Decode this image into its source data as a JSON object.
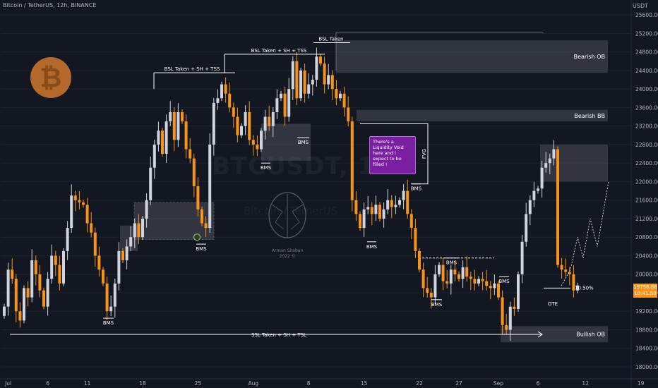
{
  "header": {
    "title": "Bitcoin / TetherUS, 12h, BINANCE",
    "unit": "USDT"
  },
  "colors": {
    "bull": "#d1d4dc",
    "bear": "#f7931a",
    "background": "#131722",
    "zone": "#5d606b",
    "callout": "#7b1fa2"
  },
  "watermark": {
    "symbol": "BTCUSDT, 12h",
    "name": "Bitcoin / TetherUS"
  },
  "author": {
    "name": "Arman Shaban",
    "year": "2022 ©"
  },
  "callout_text": "There's a Liquidity Void here and i expect to be filled !",
  "last_price": {
    "value": "19756.88",
    "countdown": "10:41:50"
  },
  "chart_data": {
    "type": "candlestick",
    "ylim": [
      18000,
      25800
    ],
    "y_ticks": [
      18000,
      18400,
      18800,
      19200,
      19600,
      20000,
      20400,
      20800,
      21200,
      21600,
      22000,
      22400,
      22800,
      23200,
      23600,
      24000,
      24400,
      24800,
      25200,
      25600
    ],
    "x_ticks": [
      {
        "label": "Jul",
        "bar": 1
      },
      {
        "label": "6",
        "bar": 11
      },
      {
        "label": "11",
        "bar": 21
      },
      {
        "label": "18",
        "bar": 35
      },
      {
        "label": "25",
        "bar": 49
      },
      {
        "label": "Aug",
        "bar": 63
      },
      {
        "label": "8",
        "bar": 77
      },
      {
        "label": "15",
        "bar": 91
      },
      {
        "label": "22",
        "bar": 105
      },
      {
        "label": "27",
        "bar": 115
      },
      {
        "label": "Sep",
        "bar": 125
      },
      {
        "label": "6",
        "bar": 135
      },
      {
        "label": "12",
        "bar": 147
      },
      {
        "label": "19",
        "bar": 161
      }
    ],
    "closes": [
      19300,
      20100,
      19900,
      19200,
      19000,
      19700,
      19500,
      20300,
      20000,
      19650,
      19300,
      19900,
      20400,
      20200,
      19800,
      20500,
      21000,
      21700,
      21600,
      21550,
      21500,
      21100,
      20900,
      20400,
      20100,
      19800,
      19200,
      19300,
      19800,
      20500,
      20300,
      20600,
      20800,
      21100,
      20800,
      21200,
      21600,
      22300,
      22800,
      23100,
      22600,
      23300,
      23500,
      22900,
      23500,
      23300,
      22700,
      22500,
      21900,
      21400,
      21100,
      21000,
      22800,
      23700,
      23800,
      24100,
      23900,
      23600,
      23400,
      23000,
      23200,
      23500,
      22900,
      22800,
      22700,
      23100,
      23400,
      23200,
      23500,
      23800,
      23900,
      23400,
      24000,
      24600,
      23800,
      24400,
      23900,
      24100,
      24200,
      24700,
      24550,
      24100,
      24300,
      24000,
      23800,
      23900,
      23600,
      23300,
      21600,
      21300,
      21000,
      21400,
      21450,
      21300,
      21500,
      21200,
      21400,
      21600,
      21450,
      21500,
      21600,
      21800,
      21300,
      21000,
      20500,
      20100,
      19700,
      19600,
      19500,
      20000,
      20200,
      19850,
      19800,
      20100,
      20000,
      19900,
      20150,
      19950,
      19900,
      19800,
      19900,
      19850,
      19750,
      19700,
      19800,
      19500,
      18900,
      18800,
      19300,
      19250,
      20000,
      20700,
      21300,
      21600,
      21800,
      21850,
      22300,
      22400,
      22500,
      22700,
      20200,
      20100,
      20050,
      20000,
      19650,
      19757
    ],
    "series": [
      {
        "name": "BTCUSDT"
      }
    ],
    "zones": [
      {
        "label": "Bearish OB",
        "top": 25050,
        "bottom": 24350
      },
      {
        "label": "Bearish BB",
        "top": 23550,
        "bottom": 23300
      },
      {
        "label": "Bullish OB",
        "top": 18880,
        "bottom": 18530
      },
      {
        "label": "",
        "top": 22800,
        "bottom": 22000
      }
    ],
    "annotations": {
      "bsl_1": "BSL Taken + SH + TSS",
      "bsl_2": "BSL Taken + SH + TSS",
      "bsl_3": "BSL Taken",
      "ssl": "SSL Taken + SH + TSL",
      "bms": "BMS",
      "fvg": "FVG",
      "ote": "OTE",
      "fib": "70.50%"
    }
  }
}
